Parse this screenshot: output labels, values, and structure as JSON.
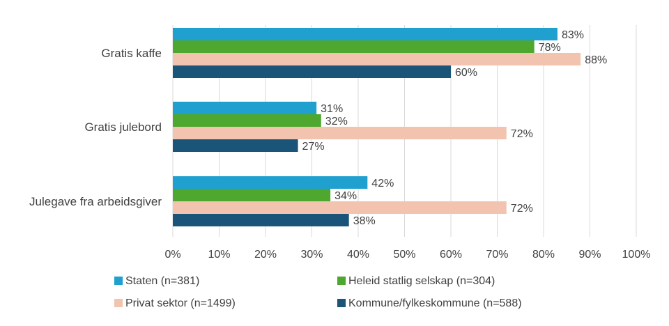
{
  "chart_data": {
    "type": "bar",
    "orientation": "horizontal",
    "categories": [
      "Gratis kaffe",
      "Gratis julebord",
      "Julegave fra arbeidsgiver"
    ],
    "series": [
      {
        "name": "Staten (n=381)",
        "color": "#1fa0cf",
        "values": [
          83,
          31,
          42
        ]
      },
      {
        "name": "Heleid statlig selskap (n=304)",
        "color": "#4ea72e",
        "values": [
          78,
          32,
          34
        ]
      },
      {
        "name": "Privat sektor (n=1499)",
        "color": "#f2c4b0",
        "values": [
          88,
          72,
          72
        ]
      },
      {
        "name": "Kommune/fylkeskommune (n=588)",
        "color": "#1a5479",
        "values": [
          60,
          27,
          38
        ]
      }
    ],
    "xlim": [
      0,
      100
    ],
    "xticks": [
      "0%",
      "10%",
      "20%",
      "30%",
      "40%",
      "50%",
      "60%",
      "70%",
      "80%",
      "90%",
      "100%"
    ],
    "value_suffix": "%",
    "grid": true,
    "legend_position": "bottom"
  }
}
